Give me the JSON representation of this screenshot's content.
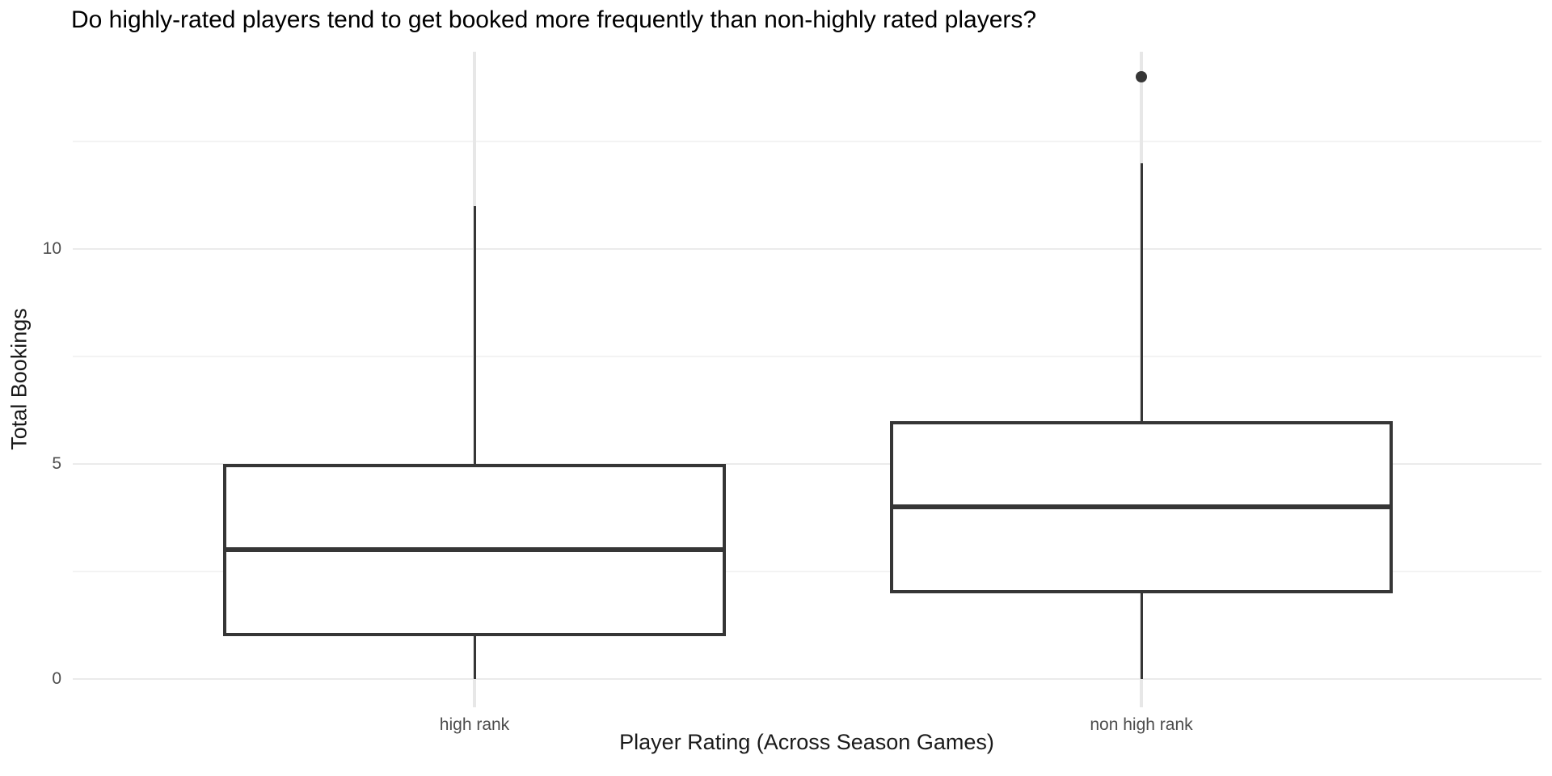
{
  "chart_data": {
    "type": "boxplot",
    "title": "Do highly-rated players tend to get booked more frequently than non-highly rated players?",
    "xlabel": "Player Rating (Across Season Games)",
    "ylabel": "Total Bookings",
    "categories": [
      "high rank",
      "non high rank"
    ],
    "y_major_ticks": [
      0,
      5,
      10
    ],
    "y_minor_gridlines": [
      2.5,
      7.5,
      12.5
    ],
    "ylim": [
      -0.7,
      14.7
    ],
    "legend_position": "none",
    "grid": "horizontal major+minor, vertical major at each category",
    "series": [
      {
        "name": "high rank",
        "whisker_low": 0,
        "q1": 1,
        "median": 3,
        "q3": 5,
        "whisker_high": 11,
        "outliers": []
      },
      {
        "name": "non high rank",
        "whisker_low": 0,
        "q1": 2,
        "median": 4,
        "q3": 6,
        "whisker_high": 12,
        "outliers": [
          14
        ]
      }
    ],
    "colors": {
      "background": "#ffffff",
      "box_stroke": "#363636",
      "box_fill": "#ffffff",
      "grid_major": "#ebebeb",
      "grid_minor": "#f3f3f3",
      "grid_vertical": "#e7e7e7",
      "tick_label": "#4d4d4d",
      "axis_title": "#1a1a1a",
      "title": "#000000"
    }
  }
}
